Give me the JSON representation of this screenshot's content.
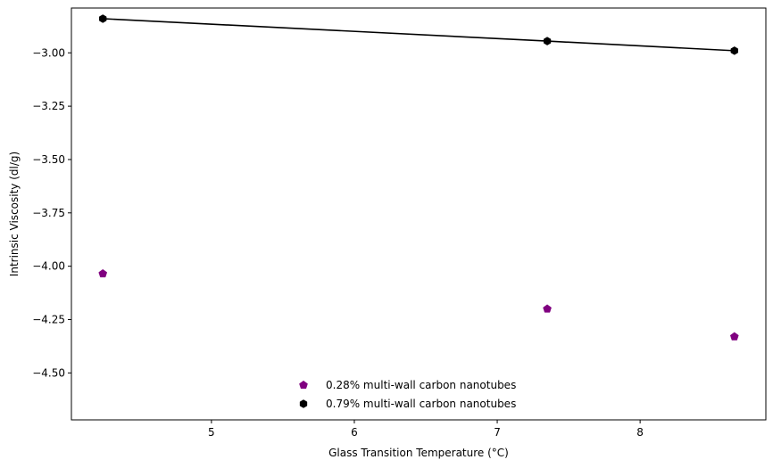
{
  "chart_data": {
    "type": "scatter",
    "title": "",
    "xlabel": "Glass Transition Temperature (°C)",
    "ylabel": "Intrinsic Viscosity (dl/g)",
    "xlim": [
      4.02,
      8.88
    ],
    "ylim": [
      -4.72,
      -2.79
    ],
    "xticks": [
      "5",
      "6",
      "7",
      "8"
    ],
    "yticks": [
      "−3.00",
      "−3.25",
      "−3.50",
      "−3.75",
      "−4.00",
      "−4.25",
      "−4.50"
    ],
    "grid": false,
    "legend_position": "lower center",
    "series": [
      {
        "name": "0.28% multi-wall carbon nanotubes",
        "color": "#800080",
        "marker": "pentagon",
        "line": false,
        "points": [
          [
            4.24,
            -4.035
          ],
          [
            7.35,
            -4.2
          ],
          [
            8.66,
            -4.33
          ]
        ]
      },
      {
        "name": "0.79% multi-wall carbon nanotubes",
        "color": "#000000",
        "marker": "hexagon",
        "line": true,
        "points": [
          [
            4.24,
            -2.84
          ],
          [
            7.35,
            -2.945
          ],
          [
            8.66,
            -2.99
          ]
        ]
      }
    ]
  }
}
